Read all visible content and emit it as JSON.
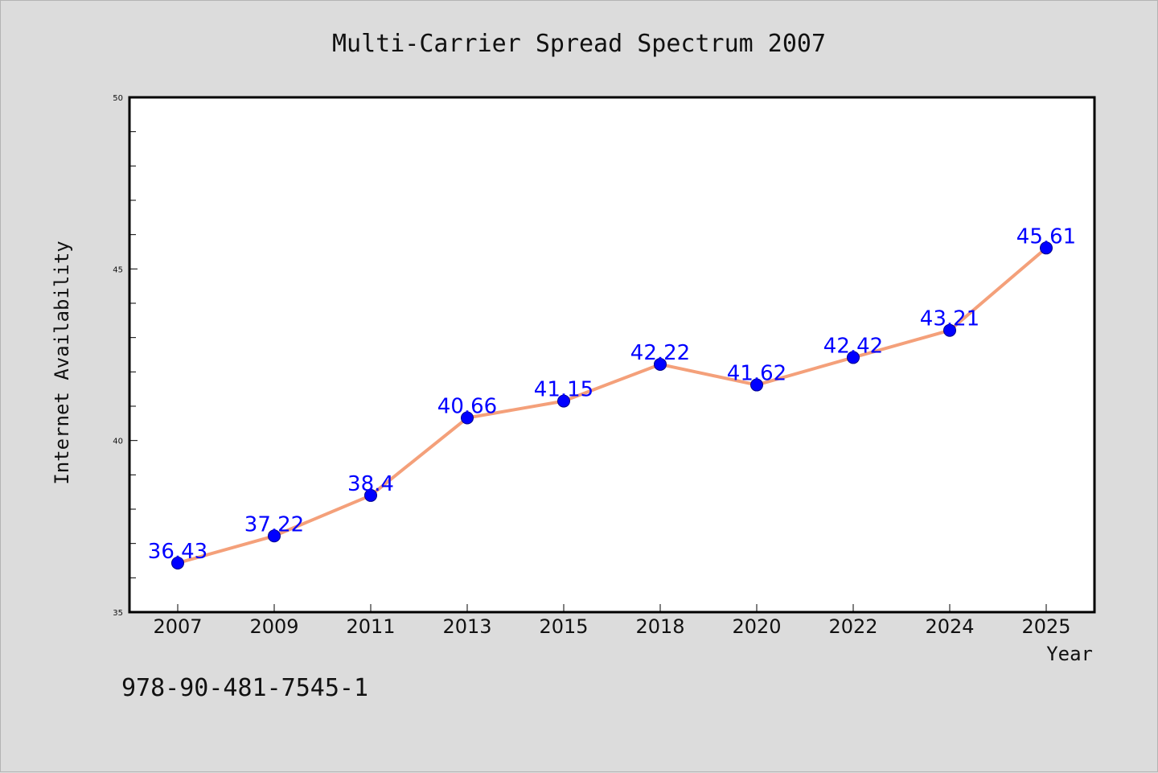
{
  "chart_data": {
    "type": "line",
    "title": "Multi-Carrier Spread Spectrum 2007",
    "xlabel": "Year",
    "ylabel": "Internet Availability",
    "categories": [
      "2007",
      "2009",
      "2011",
      "2013",
      "2015",
      "2018",
      "2020",
      "2022",
      "2024",
      "2025"
    ],
    "series": [
      {
        "values": [
          36.43,
          37.22,
          38.4,
          40.66,
          41.15,
          42.22,
          41.62,
          42.42,
          43.21,
          45.61
        ],
        "labels": [
          "36.43",
          "37.22",
          "38.4",
          "40.66",
          "41.15",
          "42.22",
          "41.62",
          "42.42",
          "43.21",
          "45.61"
        ]
      }
    ],
    "ylim": [
      35,
      50
    ],
    "yticks": [
      "35",
      "40",
      "45",
      "50"
    ],
    "grid": false,
    "legend": "none",
    "colors": {
      "line": "#f4a07a",
      "marker": "#0000ff",
      "label": "#0000ff",
      "background": "#dcdcdc",
      "plot_background": "#ffffff"
    }
  },
  "footer_text": "978-90-481-7545-1"
}
